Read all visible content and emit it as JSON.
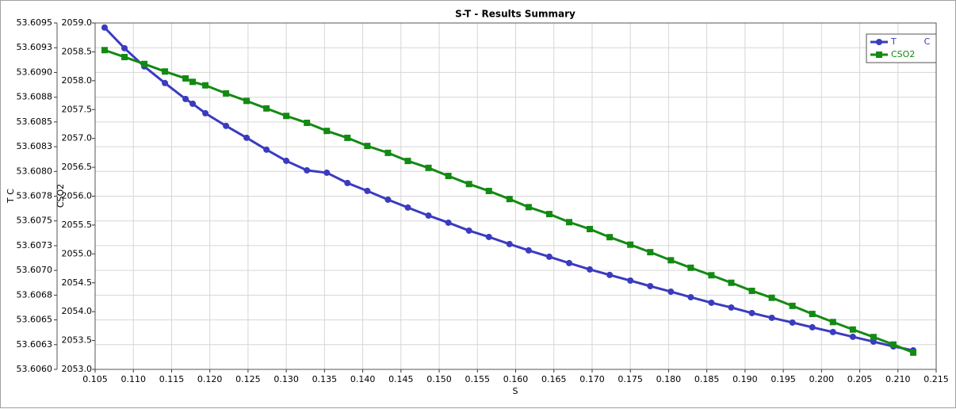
{
  "chart_data": {
    "type": "line",
    "title": "S-T - Results Summary",
    "x_label": "S",
    "y_label": "T C",
    "y2_label": "CSO2",
    "grid": true,
    "legend": "top-right",
    "x": [
      0.10624,
      0.10884,
      0.11143,
      0.11413,
      0.11683,
      0.11776,
      0.11942,
      0.12212,
      0.12481,
      0.12741,
      0.13,
      0.1327,
      0.1353,
      0.138,
      0.1406,
      0.1433,
      0.1459,
      0.1486,
      0.1512,
      0.1539,
      0.1565,
      0.1592,
      0.1617,
      0.1644,
      0.167,
      0.1697,
      0.1723,
      0.175,
      0.1776,
      0.1803,
      0.1829,
      0.1856,
      0.1882,
      0.1909,
      0.1935,
      0.1962,
      0.1988,
      0.2015,
      0.2041,
      0.2068,
      0.2094,
      0.212
    ],
    "series": [
      {
        "name": "T          C",
        "color": "#3b3bbf",
        "marker": "circle",
        "values": [
          53.609454,
          53.609245,
          53.609061,
          53.608893,
          53.608732,
          53.608684,
          53.608588,
          53.60846,
          53.60834,
          53.60822,
          53.608107,
          53.608011,
          53.607987,
          53.607883,
          53.607803,
          53.607715,
          53.607635,
          53.607554,
          53.607482,
          53.607402,
          53.607338,
          53.607266,
          53.607202,
          53.607138,
          53.607074,
          53.60701,
          53.606954,
          53.606897,
          53.606841,
          53.606785,
          53.606729,
          53.606673,
          53.606625,
          53.606569,
          53.606521,
          53.606473,
          53.606425,
          53.606377,
          53.606329,
          53.60628,
          53.606232,
          53.606192
        ]
      },
      {
        "name": "CSO2",
        "color": "#138a13",
        "marker": "square",
        "axis": "y2",
        "values": [
          2058.53,
          2058.41,
          2058.29,
          2058.16,
          2058.04,
          2057.98,
          2057.92,
          2057.78,
          2057.65,
          2057.52,
          2057.39,
          2057.27,
          2057.13,
          2057.01,
          2056.87,
          2056.75,
          2056.61,
          2056.49,
          2056.35,
          2056.21,
          2056.09,
          2055.95,
          2055.81,
          2055.69,
          2055.55,
          2055.43,
          2055.29,
          2055.16,
          2055.03,
          2054.89,
          2054.76,
          2054.63,
          2054.5,
          2054.36,
          2054.24,
          2054.1,
          2053.96,
          2053.82,
          2053.69,
          2053.56,
          2053.43,
          2053.29
        ]
      }
    ],
    "xlim": [
      0.105,
      0.215
    ],
    "xticks": [
      0.105,
      {
        "value": 0.11,
        "label": "0.110"
      },
      0.115,
      {
        "value": 0.12,
        "label": "0.120"
      },
      0.125,
      {
        "value": 0.13,
        "label": "0.130"
      },
      0.135,
      {
        "value": 0.14,
        "label": "0.140"
      },
      0.145,
      {
        "value": 0.15,
        "label": "0.150"
      },
      0.155,
      {
        "value": 0.16,
        "label": "0.160"
      },
      0.165,
      {
        "value": 0.17,
        "label": "0.170"
      },
      0.175,
      {
        "value": 0.18,
        "label": "0.180"
      },
      0.185,
      {
        "value": 0.19,
        "label": "0.190"
      },
      0.195,
      {
        "value": 0.2,
        "label": "0.200"
      },
      0.205,
      {
        "value": 0.21,
        "label": "0.210"
      },
      0.215
    ],
    "ylim": [
      53.606,
      53.6095
    ],
    "yticks": [
      {
        "value": 53.606,
        "label": "53.6060"
      },
      {
        "value": 53.60625,
        "label": "53.6063"
      },
      53.6065,
      {
        "value": 53.60675,
        "label": "53.6068"
      },
      {
        "value": 53.607,
        "label": "53.6070"
      },
      {
        "value": 53.60725,
        "label": "53.6073"
      },
      53.6075,
      {
        "value": 53.60775,
        "label": "53.6078"
      },
      {
        "value": 53.608,
        "label": "53.6080"
      },
      {
        "value": 53.60825,
        "label": "53.6083"
      },
      53.6085,
      {
        "value": 53.60875,
        "label": "53.6088"
      },
      {
        "value": 53.609,
        "label": "53.6090"
      },
      {
        "value": 53.60925,
        "label": "53.6093"
      },
      53.6095
    ],
    "y2lim": [
      2053,
      2059
    ],
    "y2ticks": [
      {
        "value": 2053,
        "label": "2053.0"
      },
      2053.5,
      {
        "value": 2054,
        "label": "2054.0"
      },
      2054.5,
      {
        "value": 2055,
        "label": "2055.0"
      },
      2055.5,
      {
        "value": 2056,
        "label": "2056.0"
      },
      2056.5,
      {
        "value": 2057,
        "label": "2057.0"
      },
      2057.5,
      {
        "value": 2058,
        "label": "2058.0"
      },
      2058.5,
      {
        "value": 2059,
        "label": "2059.0"
      }
    ]
  }
}
